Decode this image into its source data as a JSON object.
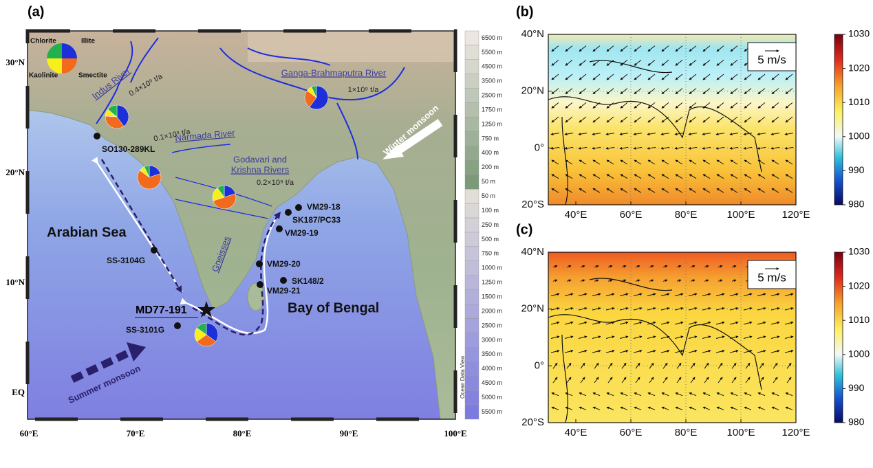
{
  "panel_a": {
    "label": "(a)",
    "legend": [
      {
        "name": "Chlorite",
        "color": "#22b24c"
      },
      {
        "name": "Illite",
        "color": "#1c2fd8"
      },
      {
        "name": "Kaolinite",
        "color": "#f7ee1c"
      },
      {
        "name": "Smectite",
        "color": "#f26a1b"
      }
    ],
    "clay_pies": [
      {
        "values": [
          14,
          40,
          10,
          36
        ]
      },
      {
        "values": [
          7,
          60,
          8,
          25
        ]
      },
      {
        "values": [
          7,
          20,
          8,
          65
        ]
      },
      {
        "values": [
          10,
          20,
          20,
          50
        ]
      },
      {
        "values": [
          15,
          35,
          20,
          30
        ]
      }
    ],
    "rivers": [
      "Indus River",
      "Narmada River",
      "Ganga-Brahmaputra River",
      "Godavari and",
      "Krishna Rivers"
    ],
    "fluxes": [
      "0.4×10⁹ t/a",
      "0.1×10⁹ t/a",
      "1×10⁹ t/a",
      "0.2×10⁹ t/a"
    ],
    "seas": [
      "Arabian Sea",
      "Bay of Bengal"
    ],
    "rock": "Gneisses",
    "core": "MD77-191",
    "monsoons": [
      "Winter monsoon",
      "Summer monsoon"
    ],
    "sites": [
      "SO130-289KL",
      "SS-3104G",
      "VM29-18",
      "SK187/PC33",
      "VM29-19",
      "VM29-20",
      "SK148/2",
      "VM29-21",
      "SS-3101G"
    ],
    "lon_ticks": [
      {
        "value": 60,
        "label": "60°E"
      },
      {
        "value": 70,
        "label": "70°E"
      },
      {
        "value": 80,
        "label": "80°E"
      },
      {
        "value": 90,
        "label": "90°E"
      },
      {
        "value": 100,
        "label": "100°E"
      }
    ],
    "lat_ticks": [
      {
        "value": 30,
        "label": "30°N"
      },
      {
        "value": 20,
        "label": "20°N"
      },
      {
        "value": 10,
        "label": "10°N"
      },
      {
        "value": 0,
        "label": "EQ"
      }
    ],
    "elevation_scale": [
      "6500 m",
      "5500 m",
      "4500 m",
      "3500 m",
      "2500 m",
      "1750 m",
      "1250 m",
      "750 m",
      "400 m",
      "200 m",
      "50 m"
    ],
    "depth_scale": [
      "50 m",
      "100 m",
      "250 m",
      "500 m",
      "750 m",
      "1000 m",
      "1250 m",
      "1500 m",
      "2000 m",
      "2500 m",
      "3000 m",
      "3500 m",
      "4000 m",
      "4500 m",
      "5000 m",
      "5500 m"
    ],
    "credit": "Ocean Data View"
  },
  "panel_b": {
    "label": "(b)",
    "scale_label": "5 m/s",
    "lon_ticks": [
      {
        "value": 40,
        "label": "40°E"
      },
      {
        "value": 60,
        "label": "60°E"
      },
      {
        "value": 80,
        "label": "80°E"
      },
      {
        "value": 100,
        "label": "100°E"
      },
      {
        "value": 120,
        "label": "120°E"
      }
    ],
    "lat_ticks": [
      {
        "value": 40,
        "label": "40°N"
      },
      {
        "value": 20,
        "label": "20°N"
      },
      {
        "value": 0,
        "label": "0°"
      },
      {
        "value": -20,
        "label": "20°S"
      }
    ],
    "colorbar_ticks": [
      1030,
      1020,
      1010,
      1000,
      990,
      980
    ]
  },
  "panel_c": {
    "label": "(c)",
    "scale_label": "5 m/s",
    "lon_ticks": [
      {
        "value": 40,
        "label": "40°E"
      },
      {
        "value": 60,
        "label": "60°E"
      },
      {
        "value": 80,
        "label": "80°E"
      },
      {
        "value": 100,
        "label": "100°E"
      },
      {
        "value": 120,
        "label": "120°E"
      }
    ],
    "lat_ticks": [
      {
        "value": 40,
        "label": "40°N"
      },
      {
        "value": 20,
        "label": "20°N"
      },
      {
        "value": 0,
        "label": "0°"
      },
      {
        "value": -20,
        "label": "20°S"
      }
    ],
    "colorbar_ticks": [
      1030,
      1020,
      1010,
      1000,
      990,
      980
    ]
  }
}
